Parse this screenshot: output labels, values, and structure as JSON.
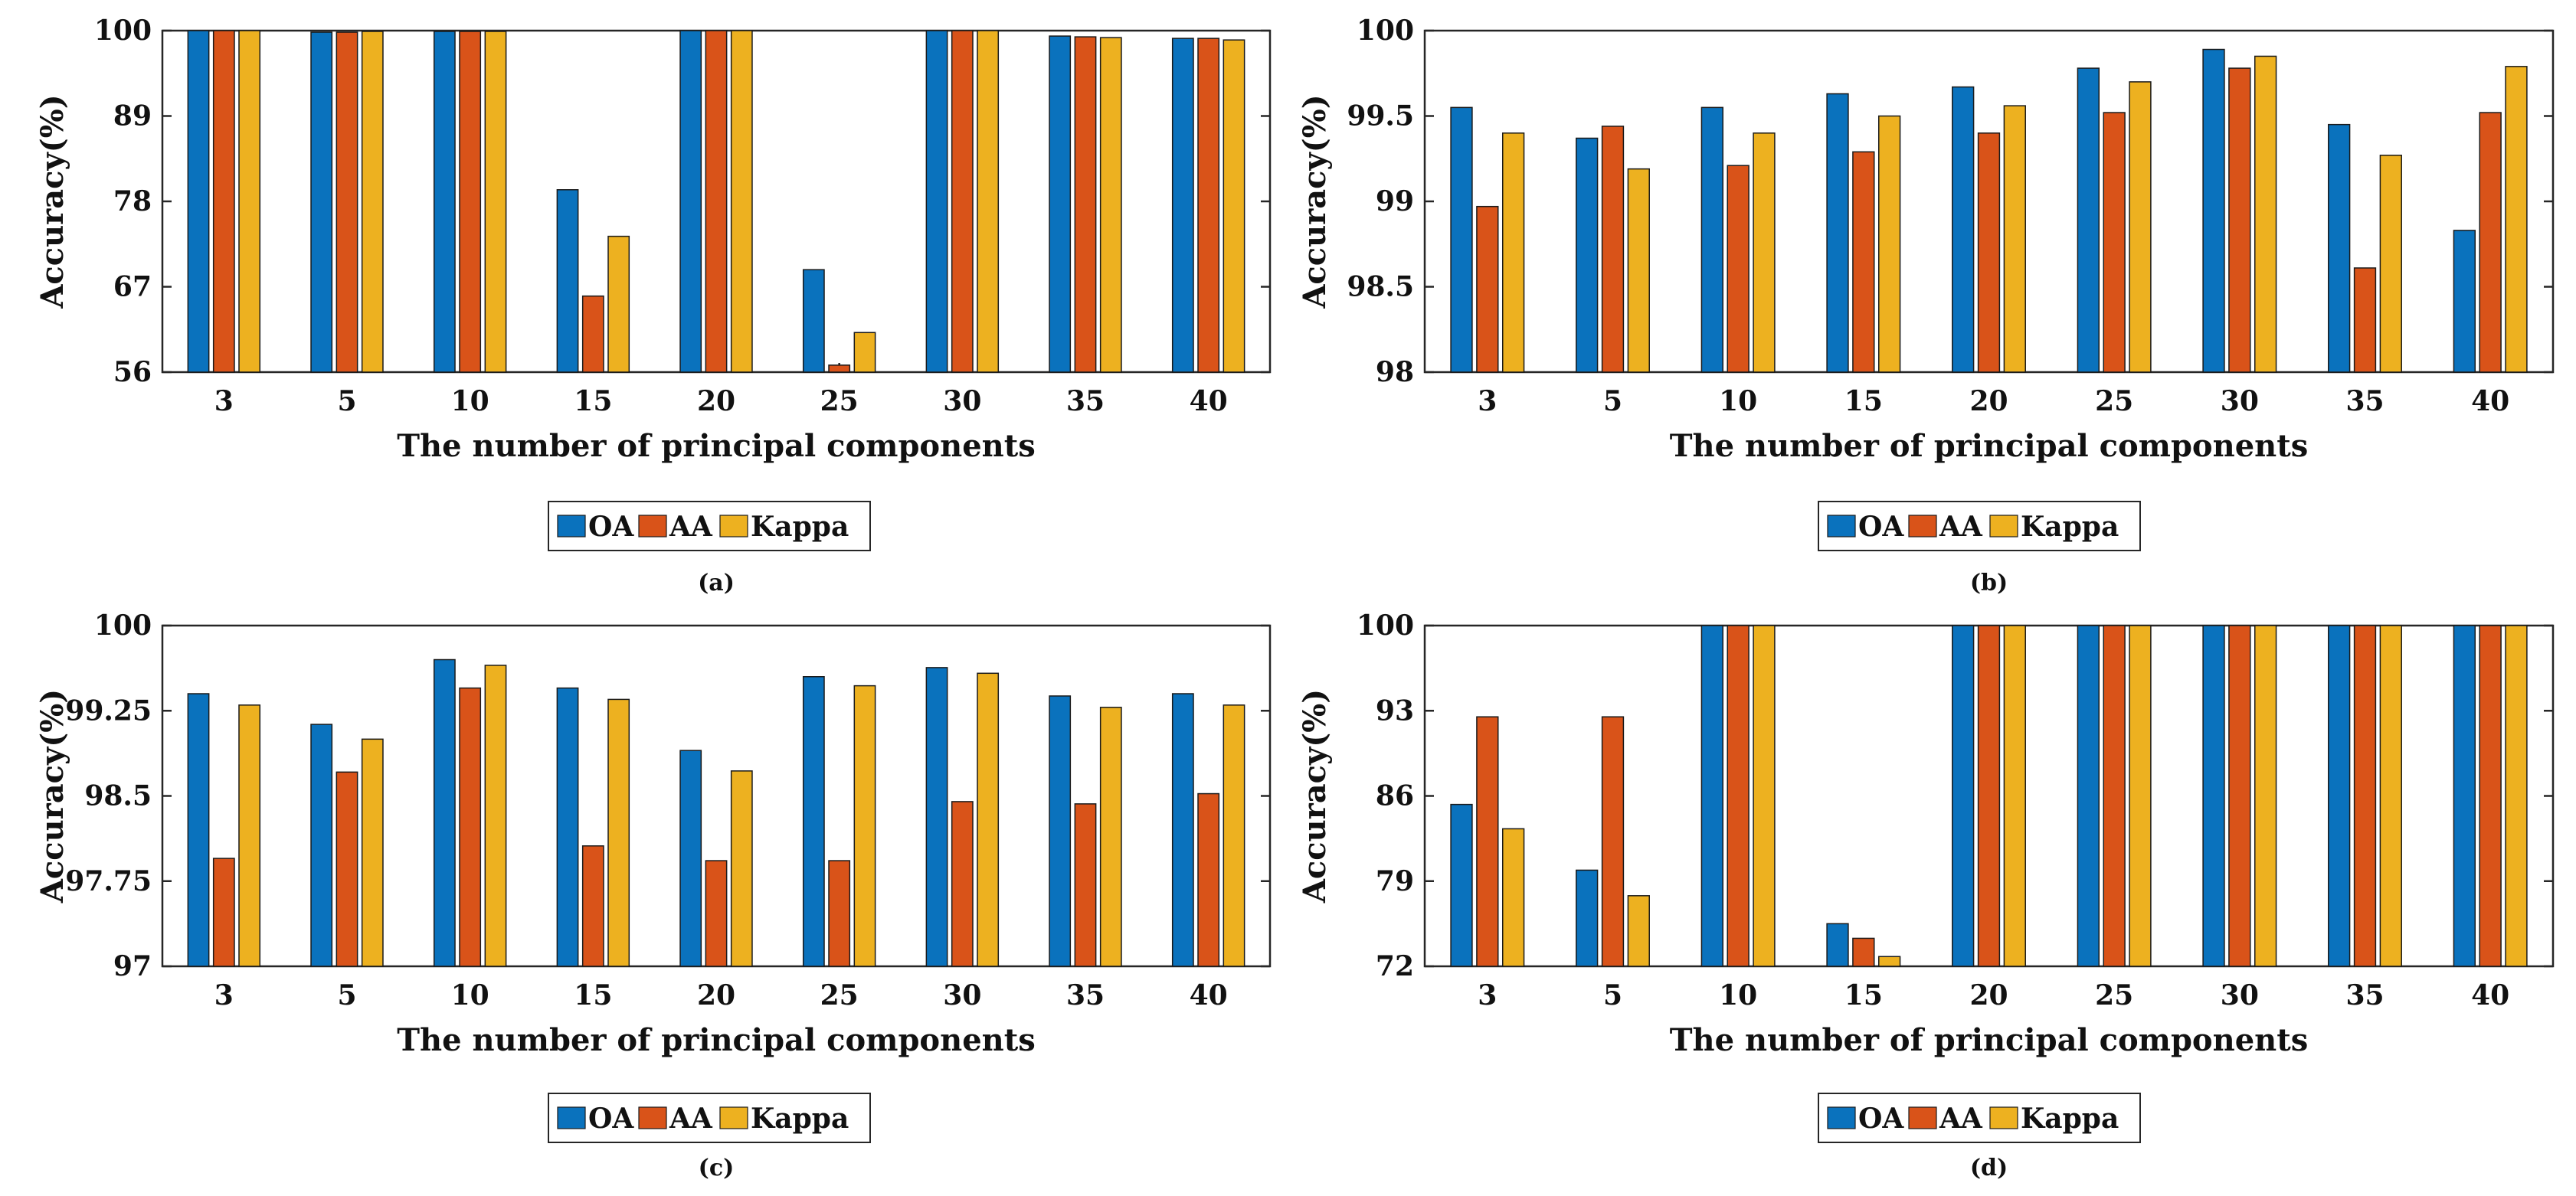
{
  "colors": {
    "OA": "#0a72bd",
    "AA": "#d95319",
    "Kappa": "#edb120"
  },
  "chart_data": [
    {
      "type": "bar",
      "panel_label": "(a)",
      "categories": [
        "3",
        "5",
        "10",
        "15",
        "20",
        "25",
        "30",
        "35",
        "40"
      ],
      "series": [
        {
          "name": "OA",
          "values": [
            100,
            99.8,
            99.9,
            79.5,
            100,
            69.2,
            100,
            99.3,
            99.0
          ]
        },
        {
          "name": "AA",
          "values": [
            100,
            99.8,
            99.9,
            65.8,
            100,
            56.9,
            100,
            99.2,
            99.0
          ]
        },
        {
          "name": "Kappa",
          "values": [
            100,
            99.9,
            99.9,
            73.5,
            100,
            61.1,
            100,
            99.1,
            98.8
          ]
        }
      ],
      "yticks": [
        "56",
        "67",
        "78",
        "89",
        "100"
      ],
      "ylim": [
        56,
        100
      ],
      "xlabel": "The number of principal components",
      "ylabel": "Accuracy(%)",
      "legend": [
        "OA",
        "AA",
        "Kappa"
      ]
    },
    {
      "type": "bar",
      "panel_label": "(b)",
      "categories": [
        "3",
        "5",
        "10",
        "15",
        "20",
        "25",
        "30",
        "35",
        "40"
      ],
      "series": [
        {
          "name": "OA",
          "values": [
            99.55,
            99.37,
            99.55,
            99.63,
            99.67,
            99.78,
            99.89,
            99.45,
            98.83
          ]
        },
        {
          "name": "AA",
          "values": [
            98.97,
            99.44,
            99.21,
            99.29,
            99.4,
            99.52,
            99.78,
            98.61,
            99.52
          ]
        },
        {
          "name": "Kappa",
          "values": [
            99.4,
            99.19,
            99.4,
            99.5,
            99.56,
            99.7,
            99.85,
            99.27,
            99.79
          ]
        }
      ],
      "yticks": [
        "98",
        "98.5",
        "99",
        "99.5",
        "100"
      ],
      "ylim": [
        98,
        100
      ],
      "xlabel": "The number of principal components",
      "ylabel": "Accuracy(%)",
      "legend": [
        "OA",
        "AA",
        "Kappa"
      ]
    },
    {
      "type": "bar",
      "panel_label": "(c)",
      "categories": [
        "3",
        "5",
        "10",
        "15",
        "20",
        "25",
        "30",
        "35",
        "40"
      ],
      "series": [
        {
          "name": "OA",
          "values": [
            99.4,
            99.13,
            99.7,
            99.45,
            98.9,
            99.55,
            99.63,
            99.38,
            99.4
          ]
        },
        {
          "name": "AA",
          "values": [
            97.95,
            98.71,
            99.45,
            98.06,
            97.93,
            97.93,
            98.45,
            98.43,
            98.52
          ]
        },
        {
          "name": "Kappa",
          "values": [
            99.3,
            99.0,
            99.65,
            99.35,
            98.72,
            99.47,
            99.58,
            99.28,
            99.3
          ]
        }
      ],
      "yticks": [
        "97",
        "97.75",
        "98.5",
        "99.25",
        "100"
      ],
      "ylim": [
        97,
        100
      ],
      "xlabel": "The number of principal components",
      "ylabel": "Accuracy(%)",
      "legend": [
        "OA",
        "AA",
        "Kappa"
      ]
    },
    {
      "type": "bar",
      "panel_label": "(d)",
      "categories": [
        "3",
        "5",
        "10",
        "15",
        "20",
        "25",
        "30",
        "35",
        "40"
      ],
      "series": [
        {
          "name": "OA",
          "values": [
            85.3,
            79.9,
            100,
            75.5,
            100,
            100,
            100,
            100,
            100
          ]
        },
        {
          "name": "AA",
          "values": [
            92.5,
            92.5,
            100,
            74.3,
            100,
            100,
            100,
            100,
            100
          ]
        },
        {
          "name": "Kappa",
          "values": [
            83.3,
            77.8,
            100,
            72.8,
            100,
            100,
            100,
            100,
            100
          ]
        }
      ],
      "yticks": [
        "72",
        "79",
        "86",
        "93",
        "100"
      ],
      "ylim": [
        72,
        100
      ],
      "xlabel": "The number of principal components",
      "ylabel": "Accuracy(%)",
      "legend": [
        "OA",
        "AA",
        "Kappa"
      ]
    }
  ]
}
